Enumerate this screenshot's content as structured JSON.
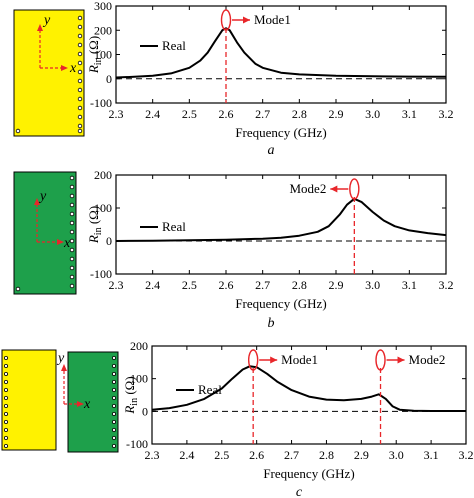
{
  "colors": {
    "yellow": "#FFF200",
    "green": "#1EA04B",
    "red": "#E8262A",
    "curve": "#000000"
  },
  "chart_data": [
    {
      "type": "line",
      "panel_label": "a",
      "xlabel": "Frequency (GHz)",
      "ylabel_main": "R",
      "ylabel_sub": "in",
      "ylabel_unit": " (Ω)",
      "xlim": [
        2.3,
        3.2
      ],
      "ylim": [
        -100,
        300
      ],
      "xticks": [
        "2.3",
        "2.4",
        "2.5",
        "2.6",
        "2.7",
        "2.8",
        "2.9",
        "3.0",
        "3.1",
        "3.2"
      ],
      "yticks": [
        "-100",
        "0",
        "100",
        "200",
        "300"
      ],
      "legend": {
        "label": "Real"
      },
      "series": [
        {
          "name": "Real",
          "x": [
            2.3,
            2.35,
            2.4,
            2.45,
            2.5,
            2.53,
            2.55,
            2.57,
            2.59,
            2.6,
            2.61,
            2.63,
            2.65,
            2.68,
            2.7,
            2.75,
            2.8,
            2.9,
            3.0,
            3.1,
            3.2
          ],
          "values": [
            5,
            8,
            12,
            22,
            45,
            75,
            108,
            155,
            200,
            208,
            200,
            150,
            108,
            62,
            45,
            25,
            18,
            12,
            10,
            9,
            8
          ]
        }
      ],
      "markers": [
        {
          "x": 2.6,
          "label": "Mode1"
        }
      ]
    },
    {
      "type": "line",
      "panel_label": "b",
      "xlabel": "Frequency (GHz)",
      "ylabel_main": "R",
      "ylabel_sub": "in",
      "ylabel_unit": " (Ω)",
      "xlim": [
        2.3,
        3.2
      ],
      "ylim": [
        -100,
        200
      ],
      "xticks": [
        "2.3",
        "2.4",
        "2.5",
        "2.6",
        "2.7",
        "2.8",
        "2.9",
        "3.0",
        "3.1",
        "3.2"
      ],
      "yticks": [
        "-100",
        "0",
        "100",
        "200"
      ],
      "legend": {
        "label": "Real"
      },
      "series": [
        {
          "name": "Real",
          "x": [
            2.3,
            2.4,
            2.5,
            2.6,
            2.7,
            2.75,
            2.8,
            2.85,
            2.88,
            2.91,
            2.93,
            2.95,
            2.97,
            3.0,
            3.03,
            3.06,
            3.1,
            3.15,
            3.2
          ],
          "values": [
            0,
            1,
            2,
            4,
            7,
            10,
            16,
            28,
            45,
            80,
            110,
            128,
            118,
            88,
            62,
            45,
            32,
            24,
            18
          ]
        }
      ],
      "markers": [
        {
          "x": 2.95,
          "label": "Mode2"
        }
      ]
    },
    {
      "type": "line",
      "panel_label": "c",
      "xlabel": "Frequency (GHz)",
      "ylabel_main": "R",
      "ylabel_sub": "in",
      "ylabel_unit": " (Ω)",
      "xlim": [
        2.3,
        3.2
      ],
      "ylim": [
        -100,
        200
      ],
      "xticks": [
        "2.3",
        "2.4",
        "2.5",
        "2.6",
        "2.7",
        "2.8",
        "2.9",
        "3.0",
        "3.1",
        "3.2"
      ],
      "yticks": [
        "-100",
        "0",
        "100",
        "200"
      ],
      "legend": {
        "label": "Real"
      },
      "series": [
        {
          "name": "Real",
          "x": [
            2.3,
            2.35,
            2.4,
            2.45,
            2.5,
            2.53,
            2.56,
            2.58,
            2.6,
            2.63,
            2.66,
            2.7,
            2.75,
            2.8,
            2.85,
            2.9,
            2.93,
            2.95,
            2.97,
            2.99,
            3.01,
            3.05,
            3.1,
            3.2
          ],
          "values": [
            5,
            10,
            20,
            38,
            70,
            100,
            128,
            138,
            135,
            115,
            90,
            65,
            45,
            36,
            34,
            38,
            45,
            52,
            38,
            15,
            5,
            2,
            1,
            1
          ]
        }
      ],
      "markers": [
        {
          "x": 2.59,
          "label": "Mode1"
        },
        {
          "x": 2.955,
          "label": "Mode2"
        }
      ]
    }
  ],
  "antenna_labels": {
    "y": "y",
    "x": "x"
  }
}
